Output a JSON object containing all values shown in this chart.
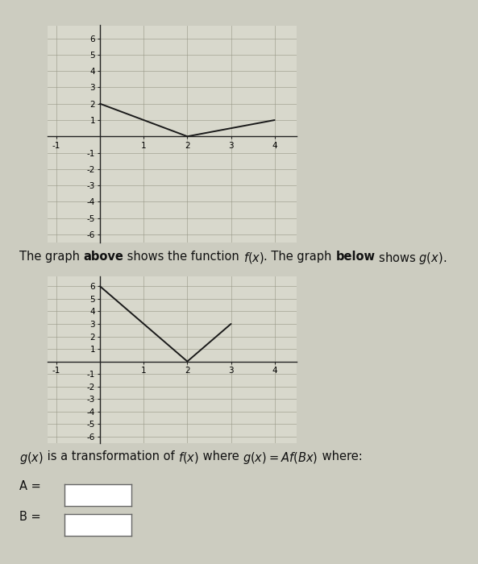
{
  "fig_width": 5.93,
  "fig_height": 7.0,
  "bg_color": "#ccccc0",
  "graph_bg": "#d8d8cc",
  "top_graph": {
    "x": [
      0,
      2,
      4
    ],
    "y": [
      2,
      0,
      1
    ],
    "xlim": [
      -1.2,
      4.5
    ],
    "ylim": [
      -6.5,
      6.8
    ],
    "xticks": [
      -1,
      1,
      2,
      3,
      4
    ],
    "yticks": [
      -6,
      -5,
      -4,
      -3,
      -2,
      -1,
      1,
      2,
      3,
      4,
      5,
      6
    ],
    "line_color": "#1a1a1a",
    "line_width": 1.4
  },
  "bottom_graph": {
    "x": [
      0,
      2,
      3
    ],
    "y": [
      6,
      0,
      3
    ],
    "xlim": [
      -1.2,
      4.5
    ],
    "ylim": [
      -6.5,
      6.8
    ],
    "xticks": [
      -1,
      1,
      2,
      3,
      4
    ],
    "yticks": [
      -6,
      -5,
      -4,
      -3,
      -2,
      -1,
      1,
      2,
      3,
      4,
      5,
      6
    ],
    "line_color": "#1a1a1a",
    "line_width": 1.4
  },
  "text_fontsize": 10.5,
  "tick_fontsize": 7.5,
  "grid_color": "#999988",
  "grid_alpha": 0.7,
  "grid_lw": 0.6
}
